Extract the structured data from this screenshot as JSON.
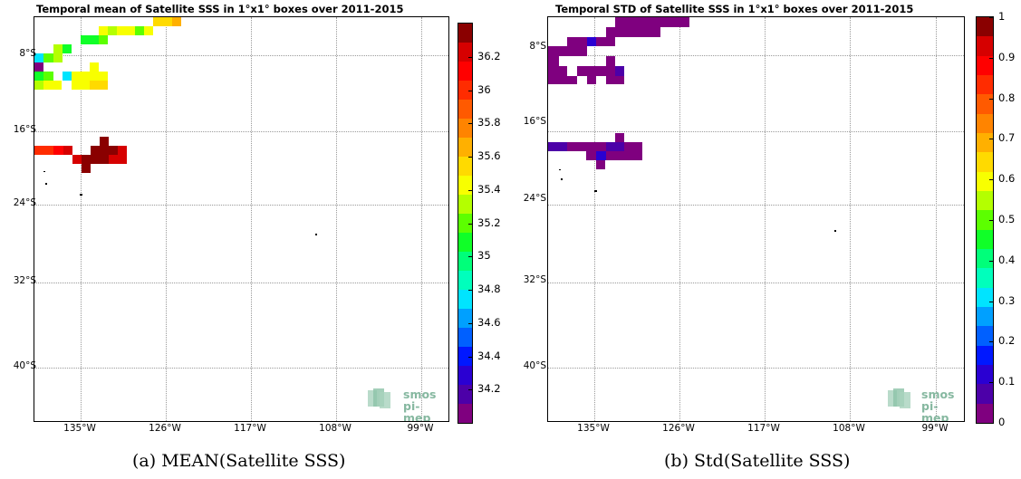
{
  "panels": [
    {
      "title": "Temporal mean of Satellite SSS in 1°x1° boxes over 2011-2015",
      "caption": "(a) MEAN(Satellite SSS)",
      "lat_labels": [
        "8°S",
        "16°S",
        "24°S",
        "32°S",
        "40°S"
      ],
      "lon_labels": [
        "135°W",
        "126°W",
        "117°W",
        "108°W",
        "99°W"
      ],
      "colorbar": {
        "min": 34.0,
        "max": 36.4,
        "ticks": [
          "34.2",
          "34.4",
          "34.6",
          "34.8",
          "35",
          "35.2",
          "35.4",
          "35.6",
          "35.8",
          "36",
          "36.2"
        ],
        "colors": [
          "#7f007f",
          "#4c00a8",
          "#2a00d2",
          "#0018ff",
          "#0060ff",
          "#00a0ff",
          "#00e4ff",
          "#00ffbc",
          "#00ff7a",
          "#10ff28",
          "#5cff00",
          "#b4ff00",
          "#f8ff00",
          "#ffda00",
          "#ffb000",
          "#ff8400",
          "#ff5a00",
          "#ff2c00",
          "#ff0000",
          "#d60000",
          "#8a0000"
        ]
      },
      "logo": {
        "line1": "smos",
        "line2": "pi-mep"
      }
    },
    {
      "title": "Temporal STD of Satellite SSS in 1°x1° boxes over 2011-2015",
      "caption": "(b) Std(Satellite SSS)",
      "lat_labels": [
        "8°S",
        "16°S",
        "24°S",
        "32°S",
        "40°S"
      ],
      "lon_labels": [
        "135°W",
        "126°W",
        "117°W",
        "108°W",
        "99°W"
      ],
      "colorbar": {
        "min": 0,
        "max": 1,
        "ticks": [
          "0",
          "0.1",
          "0.2",
          "0.3",
          "0.4",
          "0.5",
          "0.6",
          "0.7",
          "0.8",
          "0.9",
          "1"
        ],
        "colors": [
          "#7f007f",
          "#4c00a8",
          "#2a00d2",
          "#0018ff",
          "#0060ff",
          "#00a0ff",
          "#00e4ff",
          "#00ffbc",
          "#00ff7a",
          "#10ff28",
          "#5cff00",
          "#b4ff00",
          "#f8ff00",
          "#ffda00",
          "#ffb000",
          "#ff8400",
          "#ff5a00",
          "#ff2c00",
          "#ff0000",
          "#d60000",
          "#8a0000"
        ]
      },
      "logo": {
        "line1": "smos",
        "line2": "pi-mep"
      }
    }
  ]
}
